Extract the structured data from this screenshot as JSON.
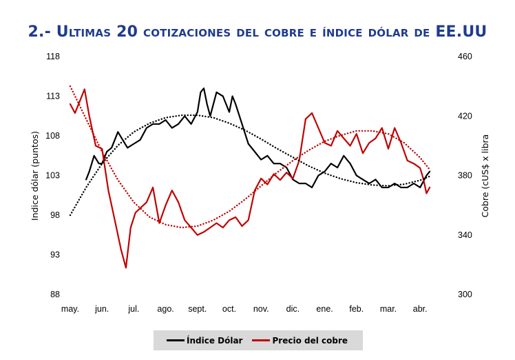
{
  "title": "2.- Ultimas 20 cotizaciones del cobre e índice dólar de EE.UU",
  "chart_data": {
    "type": "line",
    "x_labels": [
      "may.",
      "jun.",
      "jul.",
      "ago.",
      "sept.",
      "oct.",
      "nov.",
      "dic.",
      "ene.",
      "feb.",
      "mar.",
      "abr."
    ],
    "left_axis": {
      "label": "Indice dólar (puntos)",
      "min": 88,
      "max": 118,
      "ticks": [
        88,
        93,
        98,
        103,
        108,
        113,
        118
      ]
    },
    "right_axis": {
      "label": "Cobre (cUS$ x libra",
      "min": 300,
      "max": 460,
      "ticks": [
        300,
        340,
        380,
        420,
        460
      ]
    },
    "grid": false,
    "legend_position": "bottom",
    "series": [
      {
        "name": "Índice Dólar",
        "axis": "left",
        "color": "#000000",
        "x": [
          0.5,
          0.6,
          0.75,
          0.9,
          1.0,
          1.15,
          1.3,
          1.5,
          1.65,
          1.8,
          2.0,
          2.2,
          2.4,
          2.6,
          2.8,
          3.0,
          3.2,
          3.4,
          3.6,
          3.8,
          4.0,
          4.1,
          4.2,
          4.3,
          4.4,
          4.6,
          4.8,
          5.0,
          5.1,
          5.2,
          5.4,
          5.6,
          5.8,
          6.0,
          6.2,
          6.4,
          6.6,
          6.8,
          7.0,
          7.2,
          7.4,
          7.6,
          7.8,
          8.0,
          8.2,
          8.4,
          8.6,
          8.8,
          9.0,
          9.2,
          9.4,
          9.6,
          9.8,
          10.0,
          10.2,
          10.4,
          10.6,
          10.8,
          11.0,
          11.2,
          11.3
        ],
        "values": [
          102.5,
          103.5,
          105.5,
          104.5,
          104.5,
          106.0,
          106.5,
          108.5,
          107.5,
          106.5,
          107.0,
          107.5,
          109.0,
          109.5,
          109.5,
          110.0,
          109.0,
          109.5,
          110.5,
          109.5,
          111.0,
          113.5,
          114.0,
          112.0,
          110.5,
          113.5,
          113.0,
          111.0,
          113.0,
          112.0,
          109.5,
          107.0,
          106.0,
          105.0,
          105.5,
          104.5,
          104.5,
          104.0,
          102.5,
          102.0,
          102.0,
          101.5,
          103.0,
          103.5,
          104.5,
          104.0,
          105.5,
          104.5,
          103.0,
          102.5,
          102.0,
          102.5,
          101.5,
          101.5,
          102.0,
          101.5,
          101.5,
          102.0,
          101.5,
          103.0,
          103.5
        ]
      },
      {
        "name": "Precio del cobre",
        "axis": "right",
        "color": "#c00000",
        "x": [
          0.0,
          0.15,
          0.3,
          0.45,
          0.6,
          0.8,
          1.0,
          1.2,
          1.4,
          1.6,
          1.75,
          1.9,
          2.05,
          2.2,
          2.4,
          2.6,
          2.8,
          3.0,
          3.2,
          3.4,
          3.6,
          3.8,
          4.0,
          4.2,
          4.4,
          4.6,
          4.8,
          5.0,
          5.2,
          5.4,
          5.6,
          5.8,
          6.0,
          6.2,
          6.4,
          6.6,
          6.8,
          7.0,
          7.2,
          7.4,
          7.6,
          7.8,
          8.0,
          8.2,
          8.4,
          8.6,
          8.8,
          9.0,
          9.2,
          9.4,
          9.6,
          9.8,
          10.0,
          10.2,
          10.4,
          10.6,
          10.8,
          11.0,
          11.1,
          11.2,
          11.3
        ],
        "values": [
          428,
          422,
          430,
          438,
          420,
          400,
          398,
          370,
          350,
          330,
          318,
          345,
          355,
          358,
          362,
          372,
          348,
          360,
          370,
          362,
          350,
          345,
          340,
          342,
          345,
          348,
          345,
          350,
          352,
          346,
          350,
          370,
          378,
          374,
          381,
          377,
          382,
          378,
          390,
          418,
          422,
          412,
          402,
          400,
          410,
          405,
          400,
          408,
          395,
          402,
          405,
          412,
          398,
          412,
          402,
          390,
          388,
          385,
          378,
          368,
          372
        ]
      },
      {
        "name": "",
        "axis": "left",
        "style": "dotted",
        "color": "#000000",
        "x": [
          0.0,
          0.5,
          1.0,
          1.5,
          2.0,
          2.5,
          3.0,
          3.5,
          4.0,
          4.5,
          5.0,
          5.5,
          6.0,
          6.5,
          7.0,
          7.5,
          8.0,
          8.5,
          9.0,
          9.5,
          10.0,
          10.5,
          11.0,
          11.3
        ],
        "values": [
          98.0,
          101.5,
          104.5,
          106.8,
          108.5,
          109.6,
          110.3,
          110.6,
          110.6,
          110.3,
          109.6,
          108.7,
          107.6,
          106.4,
          105.3,
          104.2,
          103.3,
          102.6,
          102.1,
          101.8,
          101.7,
          101.9,
          102.4,
          102.9
        ]
      },
      {
        "name": "",
        "axis": "right",
        "style": "dotted",
        "color": "#c00000",
        "x": [
          0.0,
          0.5,
          1.0,
          1.5,
          2.0,
          2.5,
          3.0,
          3.5,
          4.0,
          4.5,
          5.0,
          5.5,
          6.0,
          6.5,
          7.0,
          7.5,
          8.0,
          8.5,
          9.0,
          9.5,
          10.0,
          10.5,
          11.0,
          11.3
        ],
        "values": [
          440,
          418,
          396,
          377,
          362,
          352,
          347,
          345,
          346,
          350,
          356,
          364,
          373,
          382,
          390,
          397,
          403,
          407,
          410,
          410,
          408,
          402,
          392,
          384
        ]
      }
    ]
  },
  "legend": {
    "items": [
      {
        "label": "Índice Dólar",
        "color": "#000000"
      },
      {
        "label": "Precio del cobre",
        "color": "#c00000"
      }
    ]
  }
}
